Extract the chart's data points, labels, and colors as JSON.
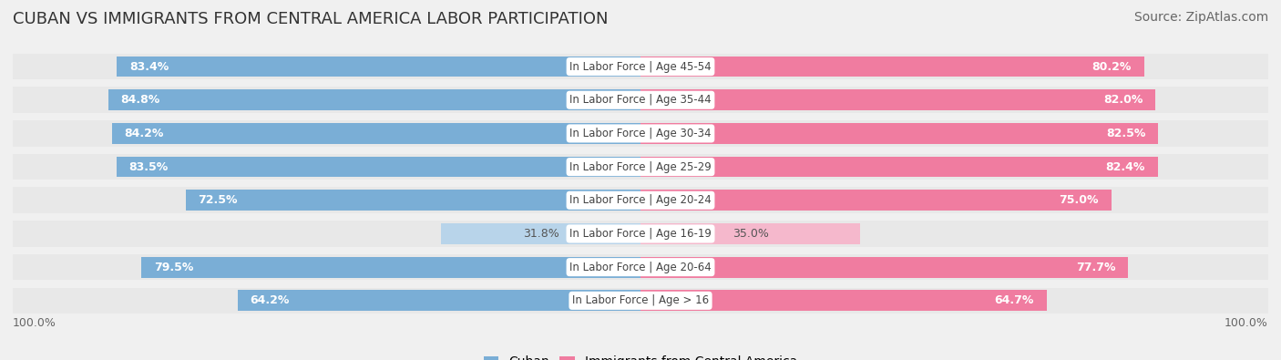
{
  "title": "CUBAN VS IMMIGRANTS FROM CENTRAL AMERICA LABOR PARTICIPATION",
  "source": "Source: ZipAtlas.com",
  "categories": [
    "In Labor Force | Age > 16",
    "In Labor Force | Age 20-64",
    "In Labor Force | Age 16-19",
    "In Labor Force | Age 20-24",
    "In Labor Force | Age 25-29",
    "In Labor Force | Age 30-34",
    "In Labor Force | Age 35-44",
    "In Labor Force | Age 45-54"
  ],
  "cuban_values": [
    64.2,
    79.5,
    31.8,
    72.5,
    83.5,
    84.2,
    84.8,
    83.4
  ],
  "immigrant_values": [
    64.7,
    77.7,
    35.0,
    75.0,
    82.4,
    82.5,
    82.0,
    80.2
  ],
  "cuban_color": "#7aaed6",
  "cuban_light_color": "#b8d4ea",
  "immigrant_color": "#f07ca0",
  "immigrant_light_color": "#f5b8cc",
  "background_color": "#f0f0f0",
  "bar_bg_color": "#ffffff",
  "label_color_dark": "#555555",
  "label_color_white": "#ffffff",
  "row_bg_color": "#e8e8e8",
  "max_value": 100.0,
  "bar_height": 0.62,
  "title_fontsize": 13,
  "source_fontsize": 10,
  "value_fontsize": 9,
  "cat_fontsize": 8.5,
  "legend_fontsize": 10
}
